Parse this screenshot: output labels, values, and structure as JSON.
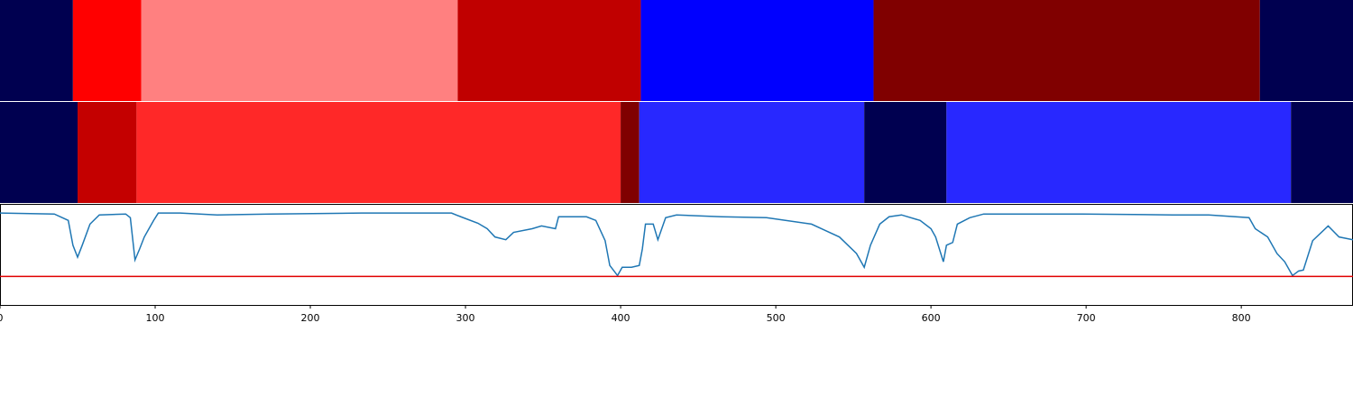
{
  "chart_data": [
    {
      "type": "segments",
      "xlim": [
        0,
        872
      ],
      "edges": [
        0,
        47,
        91,
        295,
        413,
        563,
        812,
        872
      ],
      "colors": [
        "#000050",
        "#ff0000",
        "#ff8080",
        "#c00000",
        "#0000ff",
        "#800000",
        "#000050"
      ]
    },
    {
      "type": "segments",
      "xlim": [
        0,
        872
      ],
      "edges": [
        0,
        50,
        88,
        400,
        412,
        557,
        610,
        832,
        872
      ],
      "colors": [
        "#000050",
        "#c40000",
        "#ff2828",
        "#800000",
        "#2828ff",
        "#000050",
        "#2828ff",
        "#000050"
      ]
    },
    {
      "type": "line",
      "xlim": [
        0,
        872
      ],
      "ylim": [
        0,
        1.1
      ],
      "xticks": [
        0,
        100,
        200,
        300,
        400,
        500,
        600,
        700,
        800
      ],
      "color": "#1f77b4",
      "hline": 0.31,
      "hline_color": "#e00000",
      "x": [
        0,
        35,
        44,
        47,
        50,
        53,
        58,
        64,
        81,
        84,
        87,
        90,
        93,
        99,
        102,
        116,
        140,
        174,
        233,
        291,
        297,
        308,
        314,
        319,
        326,
        331,
        343,
        349,
        358,
        360,
        378,
        384,
        390,
        393,
        398,
        401,
        407,
        412,
        414,
        416,
        421,
        424,
        429,
        436,
        465,
        494,
        523,
        541,
        552,
        557,
        561,
        567,
        573,
        581,
        593,
        600,
        603,
        608,
        610,
        614,
        617,
        625,
        634,
        698,
        756,
        779,
        805,
        809,
        817,
        823,
        828,
        833,
        837,
        840,
        846,
        856,
        863,
        872
      ],
      "values": [
        1.0,
        0.99,
        0.92,
        0.65,
        0.52,
        0.65,
        0.88,
        0.98,
        0.99,
        0.95,
        0.49,
        0.61,
        0.74,
        0.92,
        1.0,
        1.0,
        0.98,
        0.99,
        1.0,
        1.0,
        0.96,
        0.89,
        0.83,
        0.74,
        0.71,
        0.79,
        0.83,
        0.86,
        0.83,
        0.96,
        0.96,
        0.92,
        0.7,
        0.43,
        0.32,
        0.41,
        0.41,
        0.43,
        0.61,
        0.88,
        0.88,
        0.71,
        0.95,
        0.98,
        0.96,
        0.95,
        0.88,
        0.74,
        0.56,
        0.41,
        0.65,
        0.88,
        0.96,
        0.98,
        0.92,
        0.83,
        0.74,
        0.47,
        0.65,
        0.68,
        0.88,
        0.95,
        0.99,
        0.99,
        0.98,
        0.98,
        0.95,
        0.83,
        0.74,
        0.56,
        0.47,
        0.32,
        0.37,
        0.38,
        0.7,
        0.86,
        0.74,
        0.71
      ]
    }
  ]
}
